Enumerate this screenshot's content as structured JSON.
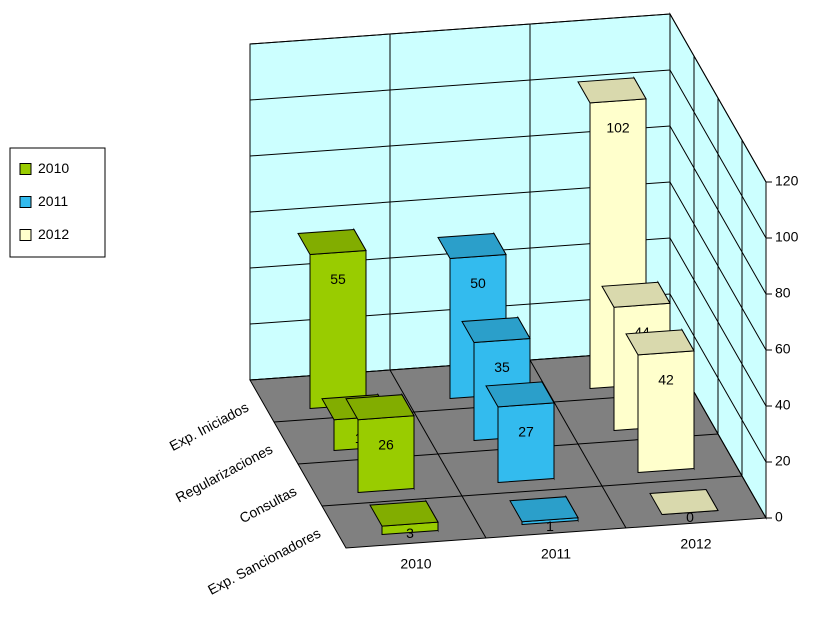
{
  "chart_data": {
    "type": "bar3d",
    "categories": [
      "Exp. Iniciados",
      "Regularizaciones",
      "Consultas",
      "Exp. Sancionadores"
    ],
    "series": [
      {
        "name": "2010",
        "color": "#99cc00",
        "values": [
          55,
          11,
          26,
          3
        ]
      },
      {
        "name": "2011",
        "color": "#33bbee",
        "values": [
          50,
          35,
          27,
          1
        ]
      },
      {
        "name": "2012",
        "color": "#ffffcc",
        "values": [
          102,
          44,
          42,
          0
        ]
      }
    ],
    "ylim": [
      0,
      120
    ],
    "yticks": [
      0,
      20,
      40,
      60,
      80,
      100,
      120
    ],
    "grid": true,
    "legend": "left"
  }
}
